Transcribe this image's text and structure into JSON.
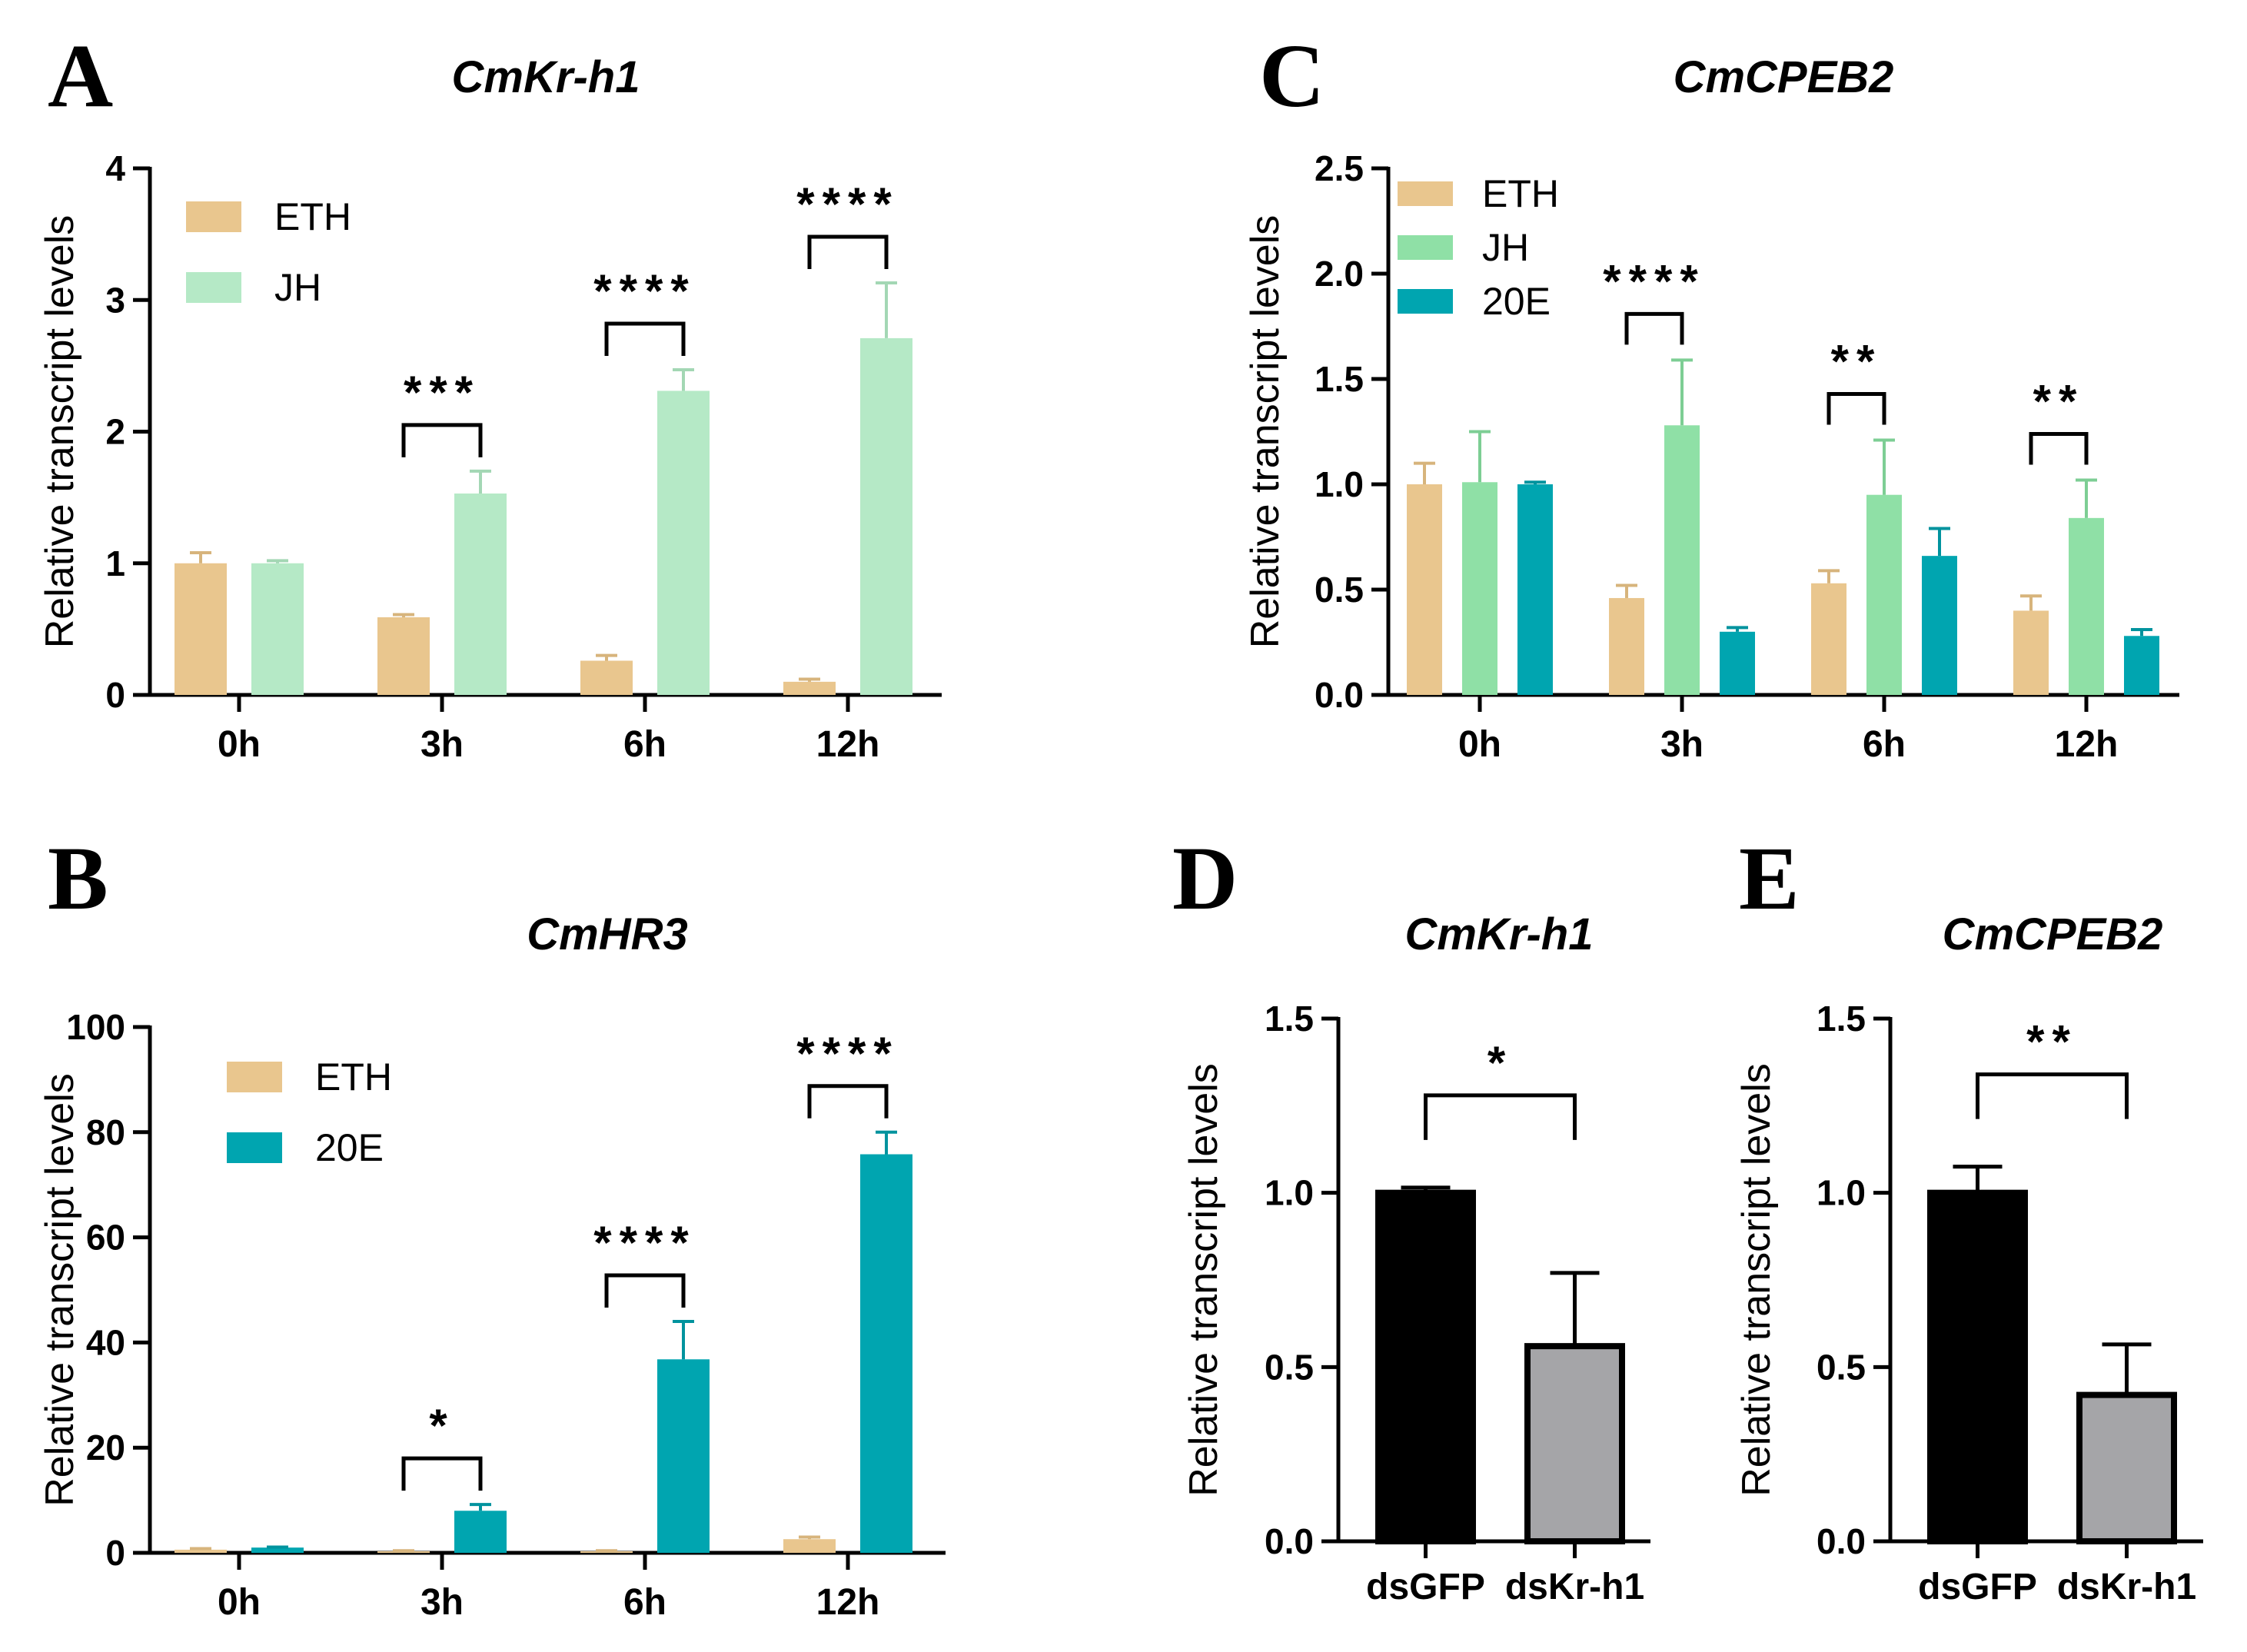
{
  "panels": [
    "A",
    "B",
    "C",
    "D",
    "E"
  ],
  "chart_data": [
    {
      "panel": "A",
      "type": "bar",
      "title": "CmKr-h1",
      "ylabel": "Relative transcript levels",
      "xlabel": "",
      "ylim": [
        0,
        4
      ],
      "yticks": [
        "0",
        "1",
        "2",
        "3",
        "4"
      ],
      "ytick_values": [
        0,
        1,
        2,
        3,
        4
      ],
      "categories": [
        "0h",
        "3h",
        "6h",
        "12h"
      ],
      "legend_position": "top-left",
      "series": [
        {
          "name": "ETH",
          "color": "#e9c68e",
          "values": [
            1.0,
            0.59,
            0.26,
            0.1
          ],
          "errors": [
            0.08,
            0.02,
            0.04,
            0.02
          ]
        },
        {
          "name": "JH",
          "color": "#b5e9c6",
          "values": [
            1.0,
            1.53,
            2.31,
            2.71
          ],
          "errors": [
            0.02,
            0.17,
            0.16,
            0.42
          ]
        }
      ],
      "significance": [
        {
          "category": "3h",
          "label": "***"
        },
        {
          "category": "6h",
          "label": "****"
        },
        {
          "category": "12h",
          "label": "****"
        }
      ]
    },
    {
      "panel": "B",
      "type": "bar",
      "title": "CmHR3",
      "ylabel": "Relative transcript levels",
      "xlabel": "",
      "ylim": [
        0,
        100
      ],
      "yticks": [
        "0",
        "20",
        "40",
        "60",
        "80",
        "100"
      ],
      "ytick_values": [
        0,
        20,
        40,
        60,
        80,
        100
      ],
      "categories": [
        "0h",
        "3h",
        "6h",
        "12h"
      ],
      "legend_position": "top-left",
      "series": [
        {
          "name": "ETH",
          "color": "#e9c68e",
          "values": [
            0.6,
            0.3,
            0.3,
            2.6
          ],
          "errors": [
            0.2,
            0.1,
            0.1,
            0.4
          ]
        },
        {
          "name": "20E",
          "color": "#00a5b0",
          "values": [
            1.0,
            8.0,
            36.8,
            75.8
          ],
          "errors": [
            0.1,
            1.2,
            7.2,
            4.2
          ]
        }
      ],
      "significance": [
        {
          "category": "3h",
          "label": "*"
        },
        {
          "category": "6h",
          "label": "****"
        },
        {
          "category": "12h",
          "label": "****"
        }
      ]
    },
    {
      "panel": "C",
      "type": "bar",
      "title": "CmCPEB2",
      "ylabel": "Relative transcript levels",
      "xlabel": "",
      "ylim": [
        0,
        2.5
      ],
      "yticks": [
        "0.0",
        "0.5",
        "1.0",
        "1.5",
        "2.0",
        "2.5"
      ],
      "ytick_values": [
        0,
        0.5,
        1.0,
        1.5,
        2.0,
        2.5
      ],
      "categories": [
        "0h",
        "3h",
        "6h",
        "12h"
      ],
      "legend_position": "top-left",
      "series": [
        {
          "name": "ETH",
          "color": "#e9c68e",
          "values": [
            1.0,
            0.46,
            0.53,
            0.4
          ],
          "errors": [
            0.1,
            0.06,
            0.06,
            0.07
          ]
        },
        {
          "name": "JH",
          "color": "#8fe0a6",
          "values": [
            1.01,
            1.28,
            0.95,
            0.84
          ],
          "errors": [
            0.24,
            0.31,
            0.26,
            0.18
          ]
        },
        {
          "name": "20E",
          "color": "#00a5b0",
          "values": [
            1.0,
            0.3,
            0.66,
            0.28
          ],
          "errors": [
            0.01,
            0.02,
            0.13,
            0.03
          ]
        }
      ],
      "significance": [
        {
          "category": "3h",
          "label": "****"
        },
        {
          "category": "6h",
          "label": "**"
        },
        {
          "category": "12h",
          "label": "**"
        }
      ]
    },
    {
      "panel": "D",
      "type": "bar",
      "title": "CmKr-h1",
      "ylabel": "Relative transcript levels",
      "xlabel": "",
      "ylim": [
        0,
        1.5
      ],
      "yticks": [
        "0.0",
        "0.5",
        "1.0",
        "1.5"
      ],
      "ytick_values": [
        0,
        0.5,
        1.0,
        1.5
      ],
      "categories": [
        "dsGFP",
        "dsKr-h1"
      ],
      "series": [
        {
          "name": "",
          "colors": [
            "#000000",
            "#a5a5a8"
          ],
          "values": [
            1.0,
            0.56
          ],
          "errors": [
            0.015,
            0.21
          ]
        }
      ],
      "significance": [
        {
          "from": "dsGFP",
          "to": "dsKr-h1",
          "label": "*"
        }
      ]
    },
    {
      "panel": "E",
      "type": "bar",
      "title": "CmCPEB2",
      "ylabel": "Relative transcript levels",
      "xlabel": "",
      "ylim": [
        0,
        1.5
      ],
      "yticks": [
        "0.0",
        "0.5",
        "1.0",
        "1.5"
      ],
      "ytick_values": [
        0,
        0.5,
        1.0,
        1.5
      ],
      "categories": [
        "dsGFP",
        "dsKr-h1"
      ],
      "series": [
        {
          "name": "",
          "colors": [
            "#000000",
            "#a5a5a8"
          ],
          "values": [
            1.0,
            0.42
          ],
          "errors": [
            0.075,
            0.145
          ]
        }
      ],
      "significance": [
        {
          "from": "dsGFP",
          "to": "dsKr-h1",
          "label": "**"
        }
      ]
    }
  ]
}
